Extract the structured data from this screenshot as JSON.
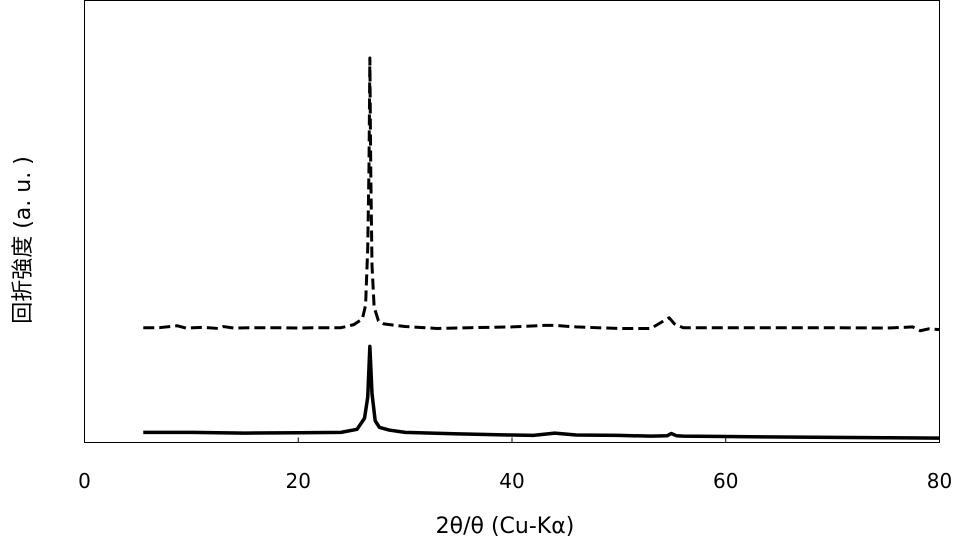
{
  "chart_data": {
    "type": "line",
    "xlabel": "2θ/θ (Cu-Kα)",
    "ylabel": "回折強度 (a. u. )",
    "xlim": [
      0,
      80
    ],
    "ylim": [
      0,
      100
    ],
    "x_ticks": [
      0,
      20,
      40,
      60,
      80
    ],
    "x_tick_labels": [
      "0",
      "20",
      "40",
      "60",
      "80"
    ],
    "grid": false,
    "legend": "none",
    "series": [
      {
        "style": "dashed",
        "color": "#000000",
        "x": [
          5.5,
          7,
          8.7,
          9.5,
          11,
          12.5,
          13,
          14,
          16,
          18,
          20,
          22,
          24,
          25.2,
          26,
          26.3,
          26.5,
          26.62,
          26.7,
          26.78,
          26.9,
          27.1,
          27.5,
          28,
          30,
          33,
          36,
          40,
          43,
          44,
          46,
          50,
          53,
          54.2,
          54.7,
          55.2,
          56,
          60,
          65,
          70,
          75,
          77.5,
          78.2,
          79,
          80
        ],
        "y": [
          29.4,
          29.4,
          29.9,
          29.3,
          29.5,
          29.2,
          29.7,
          29.3,
          29.4,
          29.4,
          29.3,
          29.4,
          29.4,
          30.2,
          31.7,
          35.3,
          50.2,
          71.6,
          100,
          71.6,
          45.8,
          34.8,
          31.2,
          30.4,
          29.7,
          29.2,
          29.4,
          29.6,
          30.0,
          30.0,
          29.6,
          29.2,
          29.2,
          31.2,
          32.0,
          30.4,
          29.4,
          29.4,
          29.4,
          29.4,
          29.3,
          29.6,
          28.6,
          29.1,
          28.9
        ]
      },
      {
        "style": "solid",
        "color": "#000000",
        "x": [
          5.5,
          10,
          15,
          20,
          24,
          25.5,
          26.2,
          26.5,
          26.7,
          26.9,
          27.2,
          27.6,
          28.5,
          30,
          35,
          40,
          42,
          44,
          46,
          50,
          53,
          54.5,
          54.9,
          55.4,
          56,
          60,
          65,
          70,
          75,
          80
        ],
        "y": [
          2.0,
          2.0,
          1.8,
          1.9,
          2.0,
          2.8,
          5.7,
          11.2,
          24.5,
          12.2,
          5.0,
          3.3,
          2.6,
          2.0,
          1.6,
          1.3,
          1.2,
          1.8,
          1.3,
          1.2,
          1.0,
          1.1,
          1.7,
          1.1,
          1.0,
          0.9,
          0.8,
          0.7,
          0.6,
          0.5
        ]
      }
    ]
  }
}
